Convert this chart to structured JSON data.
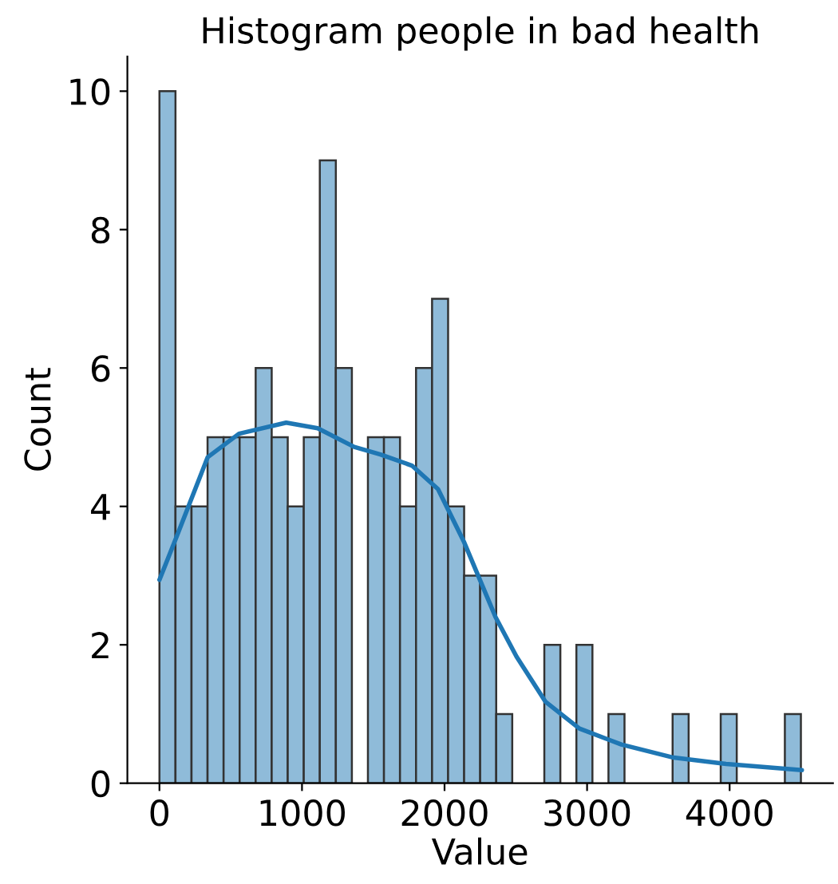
{
  "chart_data": {
    "type": "histogram",
    "title": "Histogram people in bad health",
    "xlabel": "Value",
    "ylabel": "Count",
    "bins": [
      0,
      112.5,
      225,
      337.5,
      450,
      562.5,
      675,
      787.5,
      900,
      1012.5,
      1125,
      1237.5,
      1350,
      1462.5,
      1575,
      1687.5,
      1800,
      1912.5,
      2025,
      2137.5,
      2250,
      2362.5,
      2475,
      2587.5,
      2700,
      2812.5,
      2925,
      3037.5,
      3150,
      3262.5,
      3375,
      3487.5,
      3600,
      3712.5,
      3825,
      3937.5,
      4050,
      4162.5,
      4275,
      4387.5,
      4500
    ],
    "values": [
      10,
      4,
      4,
      5,
      5,
      5,
      6,
      5,
      4,
      5,
      9,
      6,
      0,
      5,
      5,
      4,
      6,
      7,
      4,
      3,
      3,
      1,
      0,
      0,
      2,
      0,
      2,
      0,
      1,
      0,
      0,
      0,
      1,
      0,
      0,
      1,
      0,
      0,
      0,
      1
    ],
    "color": "#8fbbd9",
    "series": [
      {
        "type": "line",
        "color": "#1f77b4",
        "x": [
          0,
          118,
          338,
          558,
          889,
          1110,
          1366,
          1550,
          1771,
          1954,
          2138,
          2358,
          2505,
          2707,
          2946,
          3240,
          3607,
          3975,
          4507
        ],
        "values": [
          2.94,
          3.55,
          4.71,
          5.05,
          5.21,
          5.13,
          4.86,
          4.75,
          4.59,
          4.25,
          3.48,
          2.4,
          1.83,
          1.18,
          0.79,
          0.56,
          0.37,
          0.28,
          0.19
        ]
      }
    ],
    "xlim": [
      -225,
      4725
    ],
    "xticks": [
      0,
      1000,
      2000,
      3000,
      4000
    ],
    "ylim": [
      0,
      10.5
    ],
    "yticks": [
      0,
      2,
      4,
      6,
      8,
      10
    ],
    "grid": false
  }
}
